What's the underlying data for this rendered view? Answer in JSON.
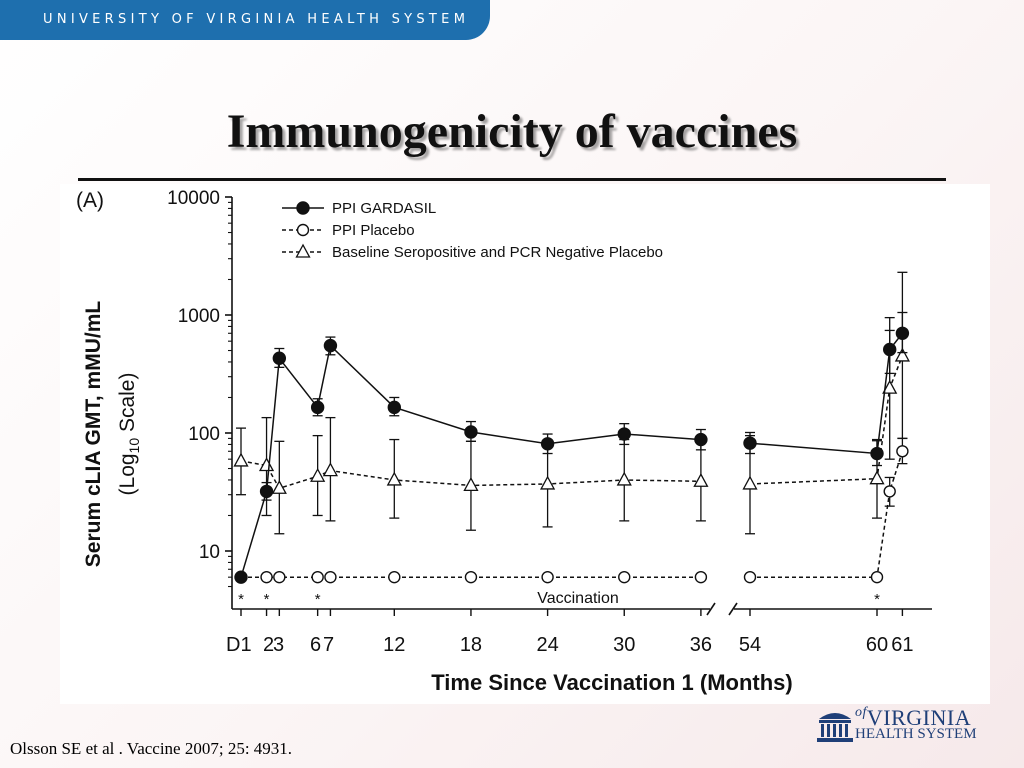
{
  "header": {
    "banner": "UNIVERSITY OF VIRGINIA HEALTH SYSTEM",
    "title": "Immunogenicity of vaccines"
  },
  "footer": {
    "citation": "Olsson SE et al . Vaccine 2007; 25: 4931.",
    "logo_line1": "VIRGINIA",
    "logo_line2": "HEALTH SYSTEM",
    "logo_prefix": "of"
  },
  "colors": {
    "banner": "#1e6fae",
    "logo": "#1f3f78"
  },
  "chart_data": {
    "type": "line",
    "panel_label": "(A)",
    "xlabel": "Time Since Vaccination 1 (Months)",
    "ylabel": "Serum cLIA GMT, mMU/mL",
    "ylabel2": "(Log",
    "ylabel2_sub": "10",
    "ylabel2_end": " Scale)",
    "yscale": "log",
    "ylim": [
      5,
      10000
    ],
    "ytick_values": [
      10,
      100,
      1000,
      10000
    ],
    "ytick_labels": [
      "10",
      "100",
      "1000",
      "10000"
    ],
    "xticks": [
      {
        "label": "D1",
        "x": 0
      },
      {
        "label": "2",
        "x": 1
      },
      {
        "label": "3",
        "x": 1.5
      },
      {
        "label": "6",
        "x": 3
      },
      {
        "label": "7",
        "x": 3.5
      },
      {
        "label": "12",
        "x": 6
      },
      {
        "label": "18",
        "x": 9
      },
      {
        "label": "24",
        "x": 12
      },
      {
        "label": "30",
        "x": 15
      },
      {
        "label": "36",
        "x": 18
      },
      {
        "label": "54",
        "x": 20
      },
      {
        "label": "60",
        "x": 25
      },
      {
        "label": "61",
        "x": 26
      }
    ],
    "axis_break_after": 18,
    "vaccination_label": "Vaccination",
    "vaccination_marks": [
      0,
      1,
      3,
      25
    ],
    "vaccination_symbol": "*",
    "legend": {
      "position": "top-center"
    },
    "series": [
      {
        "name": "PPI GARDASIL",
        "marker": "filled-circle",
        "line": "solid",
        "points": [
          {
            "x": 0,
            "y": 6
          },
          {
            "x": 1,
            "y": 32,
            "lo": 27,
            "hi": 38
          },
          {
            "x": 1.5,
            "y": 430,
            "lo": 360,
            "hi": 520
          },
          {
            "x": 3,
            "y": 165,
            "lo": 140,
            "hi": 195
          },
          {
            "x": 3.5,
            "y": 550,
            "lo": 460,
            "hi": 650
          },
          {
            "x": 6,
            "y": 165,
            "lo": 140,
            "hi": 200
          },
          {
            "x": 9,
            "y": 102,
            "lo": 85,
            "hi": 125
          },
          {
            "x": 12,
            "y": 81,
            "lo": 67,
            "hi": 98
          },
          {
            "x": 15,
            "y": 98,
            "lo": 80,
            "hi": 120
          },
          {
            "x": 18,
            "y": 88,
            "lo": 72,
            "hi": 107
          },
          {
            "x": 20,
            "y": 82,
            "lo": 67,
            "hi": 101
          },
          {
            "x": 25,
            "y": 67,
            "lo": 53,
            "hi": 86
          },
          {
            "x": 25.5,
            "y": 510,
            "lo": 320,
            "hi": 740
          },
          {
            "x": 26,
            "y": 700,
            "lo": 480,
            "hi": 1050
          }
        ]
      },
      {
        "name": "PPI Placebo",
        "marker": "open-circle",
        "line": "dashed",
        "points": [
          {
            "x": 0,
            "y": 6
          },
          {
            "x": 1,
            "y": 6
          },
          {
            "x": 1.5,
            "y": 6
          },
          {
            "x": 3,
            "y": 6
          },
          {
            "x": 3.5,
            "y": 6
          },
          {
            "x": 6,
            "y": 6
          },
          {
            "x": 9,
            "y": 6
          },
          {
            "x": 12,
            "y": 6
          },
          {
            "x": 15,
            "y": 6
          },
          {
            "x": 18,
            "y": 6
          },
          {
            "x": 20,
            "y": 6
          },
          {
            "x": 25,
            "y": 6
          },
          {
            "x": 25.5,
            "y": 32,
            "lo": 24,
            "hi": 42
          },
          {
            "x": 26,
            "y": 70,
            "lo": 55,
            "hi": 90
          }
        ]
      },
      {
        "name": "Baseline Seropositive and PCR Negative Placebo",
        "marker": "open-triangle",
        "line": "dashed",
        "points": [
          {
            "x": 0,
            "y": 58,
            "lo": 30,
            "hi": 110
          },
          {
            "x": 1,
            "y": 53,
            "lo": 20,
            "hi": 135
          },
          {
            "x": 1.5,
            "y": 34,
            "lo": 14,
            "hi": 85
          },
          {
            "x": 3,
            "y": 43,
            "lo": 20,
            "hi": 95
          },
          {
            "x": 3.5,
            "y": 48,
            "lo": 18,
            "hi": 135
          },
          {
            "x": 6,
            "y": 40,
            "lo": 19,
            "hi": 88
          },
          {
            "x": 9,
            "y": 36,
            "lo": 15,
            "hi": 85
          },
          {
            "x": 12,
            "y": 37,
            "lo": 16,
            "hi": 84
          },
          {
            "x": 15,
            "y": 40,
            "lo": 18,
            "hi": 88
          },
          {
            "x": 18,
            "y": 39,
            "lo": 18,
            "hi": 85
          },
          {
            "x": 20,
            "y": 37,
            "lo": 14,
            "hi": 95
          },
          {
            "x": 25,
            "y": 41,
            "lo": 19,
            "hi": 88
          },
          {
            "x": 25.5,
            "y": 240,
            "lo": 60,
            "hi": 950
          },
          {
            "x": 26,
            "y": 450,
            "lo": 90,
            "hi": 2300
          }
        ]
      }
    ]
  }
}
